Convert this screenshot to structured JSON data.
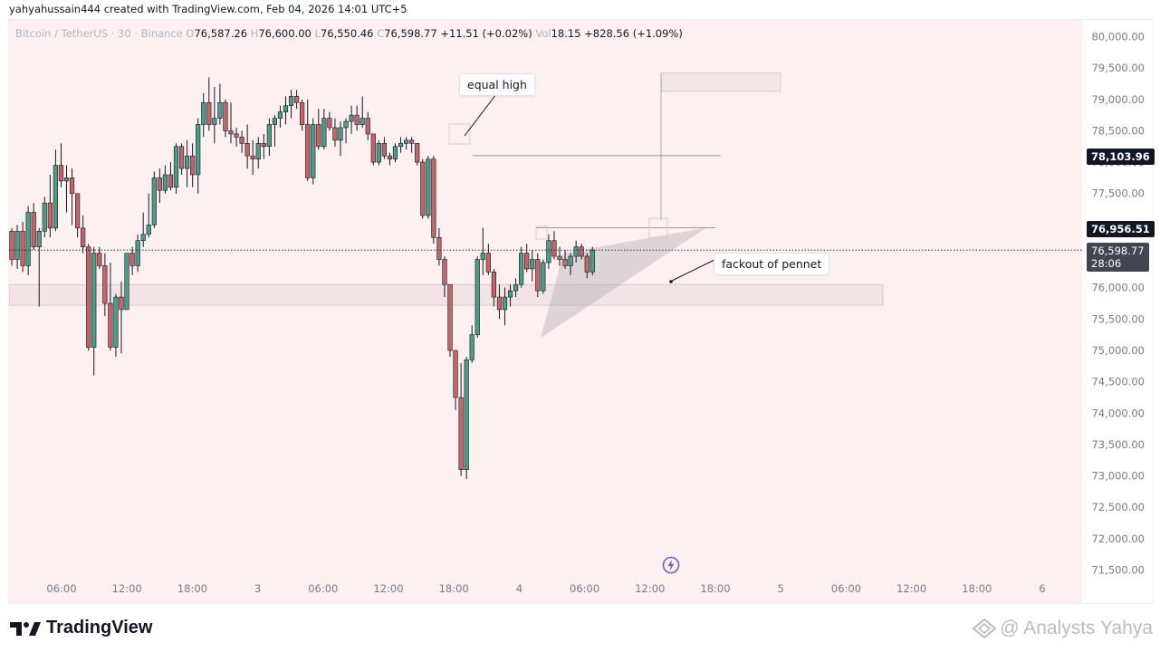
{
  "attribution": "yahyahussain444 created with TradingView.com, Feb 04, 2026 14:01 UTC+5",
  "legend": {
    "symbol": "Bitcoin / TetherUS · 30 · Binance",
    "o_label": "O",
    "o": "76,587.26",
    "h_label": "H",
    "h": "76,600.00",
    "l_label": "L",
    "l": "76,550.46",
    "c_label": "C",
    "c": "76,598.77",
    "change": "+11.51 (+0.02%)",
    "vol_label": "Vol",
    "vol": "18.15",
    "vol_change": "+828.56 (+1.09%)"
  },
  "footer": {
    "brand": "TradingView",
    "watermark": "@ Analysts Yahya"
  },
  "colors": {
    "up": "#4f9b86",
    "down": "#c0666c",
    "background": "#fdf0f1"
  },
  "chart_data": {
    "type": "candlestick",
    "y_axis": {
      "ylim": [
        71250,
        80300
      ],
      "ticks": [
        "80,000.00",
        "79,500.00",
        "79,000.00",
        "78,500.00",
        "78,000.00",
        "77,500.00",
        "77,000.00",
        "76,500.00",
        "76,000.00",
        "75,500.00",
        "75,000.00",
        "74,500.00",
        "74,000.00",
        "73,500.00",
        "73,000.00",
        "72,500.00",
        "72,000.00",
        "71,500.00"
      ],
      "tick_values": [
        80000,
        79500,
        79000,
        78500,
        78000,
        77500,
        77000,
        76500,
        76000,
        75500,
        75000,
        74500,
        74000,
        73500,
        73000,
        72500,
        72000,
        71500
      ]
    },
    "x_axis": {
      "ticks": [
        "06:00",
        "12:00",
        "18:00",
        "3",
        "06:00",
        "12:00",
        "18:00",
        "4",
        "06:00",
        "12:00",
        "18:00",
        "5",
        "06:00",
        "12:00",
        "18:00",
        "6"
      ]
    },
    "price_tags": [
      {
        "value": 78103.96,
        "label": "78,103.96"
      },
      {
        "value": 76956.51,
        "label": "76,956.51"
      },
      {
        "value": 76598.77,
        "label": "76,598.77",
        "sub": "28:06"
      }
    ],
    "current_price": 76598.77,
    "annotations": [
      {
        "text": "equal high"
      },
      {
        "text": "fackout of pennet"
      }
    ],
    "levels": {
      "equal_high": 78103.96,
      "pennant_top": 76956.51,
      "target_top": 79420,
      "target_bottom": 79130,
      "zone_top": 76050,
      "zone_bottom": 75720
    },
    "candles": [
      [
        76900,
        76950,
        76350,
        76450
      ],
      [
        76450,
        77000,
        76300,
        76900
      ],
      [
        76900,
        77050,
        76250,
        76350
      ],
      [
        76350,
        77300,
        76200,
        77200
      ],
      [
        77200,
        77350,
        76600,
        76650
      ],
      [
        76650,
        76950,
        75700,
        76900
      ],
      [
        76900,
        77450,
        76800,
        77350
      ],
      [
        77350,
        77800,
        76800,
        76950
      ],
      [
        76950,
        78200,
        76900,
        77950
      ],
      [
        77950,
        78300,
        77600,
        77700
      ],
      [
        77700,
        77950,
        77200,
        77750
      ],
      [
        77750,
        77900,
        77000,
        77500
      ],
      [
        77500,
        77500,
        76800,
        76950
      ],
      [
        76950,
        77150,
        76550,
        76650
      ],
      [
        76650,
        76700,
        75000,
        75050
      ],
      [
        75050,
        76650,
        74600,
        76550
      ],
      [
        76550,
        76650,
        76300,
        76350
      ],
      [
        76350,
        76550,
        75550,
        75750
      ],
      [
        75750,
        76400,
        75000,
        75050
      ],
      [
        75050,
        75900,
        74900,
        75850
      ],
      [
        75850,
        76100,
        74950,
        75650
      ],
      [
        75650,
        76550,
        75650,
        76550
      ],
      [
        76550,
        76650,
        76200,
        76350
      ],
      [
        76350,
        76850,
        76250,
        76750
      ],
      [
        76750,
        77200,
        76650,
        76850
      ],
      [
        76850,
        77500,
        76800,
        77000
      ],
      [
        77000,
        77850,
        76950,
        77750
      ],
      [
        77750,
        77900,
        77350,
        77550
      ],
      [
        77550,
        77950,
        77500,
        77800
      ],
      [
        77800,
        78000,
        77550,
        77600
      ],
      [
        77600,
        78300,
        77500,
        78250
      ],
      [
        78250,
        78300,
        77800,
        77900
      ],
      [
        77900,
        78350,
        77600,
        78100
      ],
      [
        78100,
        78300,
        77600,
        77800
      ],
      [
        77800,
        78700,
        77500,
        78600
      ],
      [
        78600,
        79100,
        78400,
        78950
      ],
      [
        78950,
        79350,
        78500,
        78600
      ],
      [
        78600,
        79200,
        78300,
        78700
      ],
      [
        78700,
        79250,
        78600,
        78950
      ],
      [
        78950,
        79000,
        78400,
        78500
      ],
      [
        78500,
        78950,
        78300,
        78450
      ],
      [
        78450,
        78550,
        78250,
        78400
      ],
      [
        78400,
        78500,
        78150,
        78300
      ],
      [
        78300,
        78600,
        77900,
        78100
      ],
      [
        78100,
        78350,
        77800,
        78050
      ],
      [
        78050,
        78400,
        77900,
        78300
      ],
      [
        78300,
        78450,
        78050,
        78250
      ],
      [
        78250,
        78700,
        78100,
        78600
      ],
      [
        78600,
        78750,
        78250,
        78700
      ],
      [
        78700,
        78900,
        78550,
        78800
      ],
      [
        78800,
        79050,
        78600,
        78900
      ],
      [
        78900,
        79150,
        78700,
        79050
      ],
      [
        79050,
        79150,
        78850,
        78950
      ],
      [
        78950,
        79000,
        78500,
        78600
      ],
      [
        78600,
        79000,
        77700,
        77750
      ],
      [
        77750,
        78700,
        77650,
        78600
      ],
      [
        78600,
        78850,
        78200,
        78250
      ],
      [
        78250,
        78850,
        78200,
        78700
      ],
      [
        78700,
        78800,
        78500,
        78550
      ],
      [
        78550,
        78700,
        78250,
        78350
      ],
      [
        78350,
        78650,
        78100,
        78550
      ],
      [
        78550,
        78700,
        78300,
        78650
      ],
      [
        78650,
        78900,
        78450,
        78750
      ],
      [
        78750,
        78900,
        78500,
        78600
      ],
      [
        78600,
        79050,
        78550,
        78700
      ],
      [
        78700,
        78800,
        78350,
        78450
      ],
      [
        78450,
        78450,
        77950,
        78000
      ],
      [
        78000,
        78350,
        77950,
        78300
      ],
      [
        78300,
        78400,
        78050,
        78100
      ],
      [
        78100,
        78150,
        77950,
        78050
      ],
      [
        78050,
        78300,
        78000,
        78250
      ],
      [
        78250,
        78400,
        78150,
        78300
      ],
      [
        78300,
        78400,
        78200,
        78350
      ],
      [
        78350,
        78400,
        78150,
        78300
      ],
      [
        78300,
        78300,
        77950,
        78000
      ],
      [
        78000,
        78050,
        77100,
        77150
      ],
      [
        77150,
        78100,
        77100,
        78050
      ],
      [
        78050,
        78100,
        76700,
        76800
      ],
      [
        76800,
        76950,
        76350,
        76450
      ],
      [
        76450,
        76500,
        75850,
        76050
      ],
      [
        76050,
        76050,
        74900,
        75000
      ],
      [
        75000,
        75000,
        74050,
        74250
      ],
      [
        74250,
        74800,
        73000,
        73100
      ],
      [
        73100,
        74900,
        72950,
        74850
      ],
      [
        74850,
        75400,
        74800,
        75250
      ],
      [
        75250,
        76500,
        75200,
        76450
      ],
      [
        76450,
        76956,
        76200,
        76550
      ],
      [
        76550,
        76700,
        76200,
        76250
      ],
      [
        76250,
        76300,
        75700,
        75850
      ],
      [
        75850,
        76050,
        75500,
        75650
      ],
      [
        75650,
        76000,
        75400,
        75850
      ],
      [
        75850,
        76050,
        75700,
        75950
      ],
      [
        75950,
        76150,
        75850,
        76050
      ],
      [
        76050,
        76650,
        76000,
        76550
      ],
      [
        76550,
        76700,
        76250,
        76300
      ],
      [
        76300,
        76600,
        76100,
        76450
      ],
      [
        76450,
        76550,
        75850,
        75950
      ],
      [
        75950,
        76450,
        75900,
        76400
      ],
      [
        76400,
        76850,
        76300,
        76750
      ],
      [
        76750,
        76900,
        76450,
        76500
      ],
      [
        76500,
        76650,
        76350,
        76450
      ],
      [
        76450,
        76600,
        76300,
        76350
      ],
      [
        76350,
        76550,
        76200,
        76500
      ],
      [
        76500,
        76750,
        76400,
        76650
      ],
      [
        76650,
        76700,
        76450,
        76500
      ],
      [
        76500,
        76550,
        76150,
        76250
      ],
      [
        76250,
        76650,
        76200,
        76600
      ]
    ]
  }
}
